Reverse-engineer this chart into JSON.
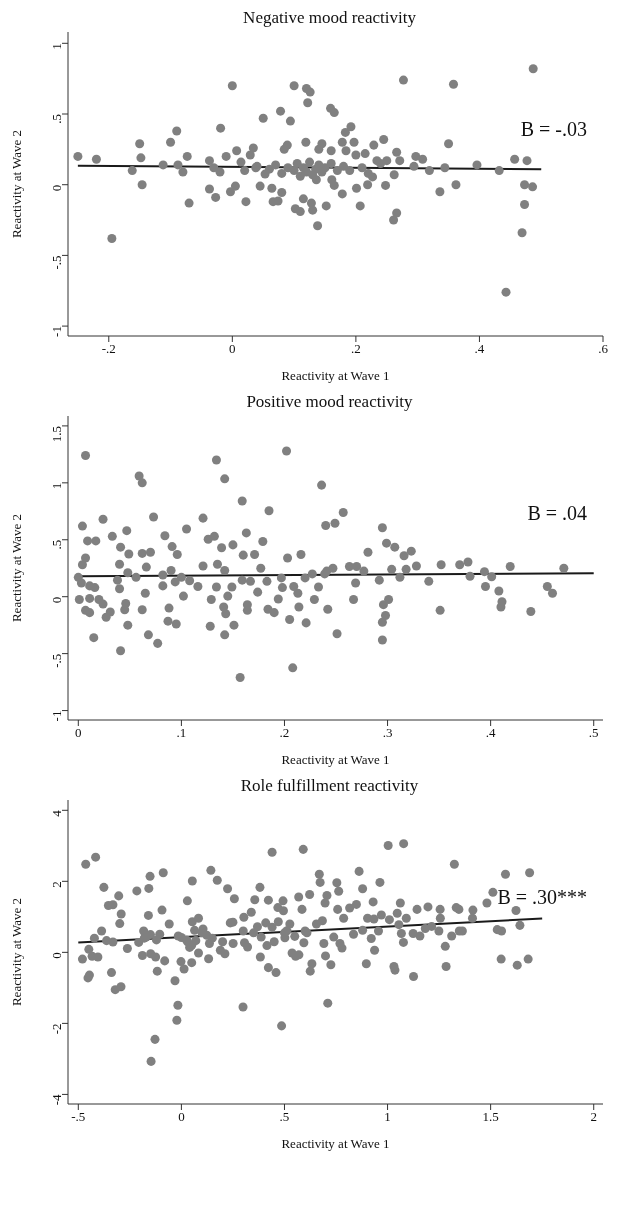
{
  "chart_data": [
    {
      "type": "scatter",
      "title": "Negative mood reactivity",
      "xlabel": "Reactivity at Wave 1",
      "ylabel": "Reactivity at Wave 2",
      "xlim": [
        -0.266,
        0.6
      ],
      "ylim": [
        -1.07,
        1.08
      ],
      "xticks": [
        {
          "value": -0.2,
          "label": "-.2"
        },
        0,
        {
          "value": 0.2,
          "label": ".2"
        },
        {
          "value": 0.4,
          "label": ".4"
        },
        {
          "value": 0.6,
          "label": ".6"
        }
      ],
      "yticks": [
        {
          "value": -1,
          "label": "-1"
        },
        {
          "value": -0.5,
          "label": "-.5"
        },
        0,
        {
          "value": 0.5,
          "label": ".5"
        },
        1
      ],
      "grid": false,
      "annotations": [
        "B = -.03"
      ],
      "series": [
        {
          "marker": "circle",
          "color": "#808080",
          "x": [
            -0.25,
            -0.22,
            -0.195,
            -0.162,
            -0.15,
            -0.148,
            -0.146,
            -0.112,
            -0.1,
            -0.09,
            -0.088,
            -0.08,
            -0.073,
            -0.07,
            -0.037,
            -0.037,
            -0.03,
            -0.027,
            -0.02,
            -0.019,
            -0.01,
            -0.003,
            0.0,
            0.005,
            0.007,
            0.014,
            0.022,
            0.029,
            0.034,
            0.038,
            0.045,
            0.05,
            0.053,
            0.064,
            0.066,
            0.074,
            0.078,
            0.08,
            0.084,
            0.089,
            0.094,
            0.1,
            0.102,
            0.11,
            0.12,
            0.122,
            0.126,
            0.119,
            0.115,
            0.128,
            0.13,
            0.136,
            0.138,
            0.14,
            0.145,
            0.152,
            0.159,
            0.16,
            0.161,
            0.165,
            0.165,
            0.178,
            0.178,
            0.183,
            0.184,
            0.192,
            0.197,
            0.201,
            0.2,
            0.207,
            0.215,
            0.219,
            0.227,
            0.229,
            0.234,
            0.245,
            0.248,
            0.261,
            0.266,
            0.262,
            0.266,
            0.271,
            0.277,
            0.294,
            0.297,
            0.308,
            0.319,
            0.336,
            0.344,
            0.35,
            0.358,
            0.362,
            0.396,
            0.432,
            0.443,
            0.457,
            0.469,
            0.473,
            0.473,
            0.477,
            0.486,
            0.487,
            0.02,
            0.04,
            0.06,
            0.07,
            0.08,
            0.09,
            0.1,
            0.105,
            0.11,
            0.115,
            0.12,
            0.125,
            0.13,
            0.135,
            0.14,
            0.145,
            0.15,
            0.16,
            0.17,
            0.18,
            0.19,
            0.21,
            0.22,
            0.24,
            0.25
          ],
          "values": [
            0.2,
            0.18,
            -0.38,
            0.1,
            0.29,
            0.19,
            0.0,
            0.14,
            0.3,
            0.38,
            0.14,
            0.09,
            0.2,
            -0.13,
            0.17,
            -0.03,
            0.12,
            -0.09,
            0.09,
            0.4,
            0.2,
            -0.05,
            0.7,
            -0.01,
            0.24,
            0.16,
            -0.12,
            0.21,
            0.26,
            0.12,
            -0.01,
            0.47,
            0.075,
            -0.025,
            -0.12,
            -0.115,
            0.52,
            -0.055,
            0.25,
            0.28,
            0.45,
            0.7,
            -0.17,
            -0.19,
            0.68,
            0.58,
            0.655,
            0.3,
            -0.1,
            -0.13,
            -0.18,
            0.035,
            -0.29,
            0.25,
            0.29,
            -0.15,
            0.54,
            0.24,
            0.035,
            0.51,
            -0.005,
            -0.065,
            0.3,
            0.37,
            0.24,
            0.41,
            0.3,
            -0.025,
            0.21,
            -0.15,
            0.22,
            0.0,
            0.055,
            0.28,
            0.17,
            0.32,
            -0.005,
            -0.25,
            -0.2,
            0.07,
            0.23,
            0.17,
            0.74,
            0.13,
            0.2,
            0.18,
            0.1,
            -0.05,
            0.12,
            0.29,
            0.71,
            0.0,
            0.14,
            0.1,
            -0.76,
            0.18,
            -0.34,
            -0.14,
            0.0,
            0.17,
            -0.015,
            0.82,
            0.1,
            0.13,
            0.11,
            0.14,
            0.08,
            0.12,
            0.1,
            0.15,
            0.06,
            0.12,
            0.09,
            0.16,
            0.07,
            0.11,
            0.14,
            0.09,
            0.12,
            0.15,
            0.1,
            0.13,
            0.1,
            0.12,
            0.08,
            0.15,
            0.17
          ]
        },
        {
          "type": "line",
          "color": "#1a1a1a",
          "x": [
            -0.25,
            0.5
          ],
          "values": [
            0.134,
            0.11
          ]
        }
      ]
    },
    {
      "type": "scatter",
      "title": "Positive mood reactivity",
      "xlabel": "Reactivity at Wave 1",
      "ylabel": "Reactivity at Wave 2",
      "xlim": [
        -0.01,
        0.509
      ],
      "ylim": [
        -1.083,
        1.587
      ],
      "xticks": [
        0,
        {
          "value": 0.1,
          "label": ".1"
        },
        {
          "value": 0.2,
          "label": ".2"
        },
        {
          "value": 0.3,
          "label": ".3"
        },
        {
          "value": 0.4,
          "label": ".4"
        },
        {
          "value": 0.5,
          "label": ".5"
        }
      ],
      "yticks": [
        {
          "value": -1,
          "label": "-1"
        },
        {
          "value": -0.5,
          "label": "-.5"
        },
        0,
        {
          "value": 0.5,
          "label": ".5"
        },
        1,
        1.5
      ],
      "grid": false,
      "annotations": [
        "B = .04"
      ],
      "series": [
        {
          "marker": "circle",
          "color": "#808080",
          "x": [
            0.0,
            0.001,
            0.003,
            0.004,
            0.004,
            0.007,
            0.007,
            0.007,
            0.009,
            0.011,
            0.011,
            0.011,
            0.015,
            0.016,
            0.017,
            0.02,
            0.024,
            0.024,
            0.027,
            0.031,
            0.033,
            0.038,
            0.04,
            0.04,
            0.041,
            0.041,
            0.045,
            0.046,
            0.047,
            0.048,
            0.049,
            0.048,
            0.056,
            0.059,
            0.062,
            0.062,
            0.062,
            0.065,
            0.066,
            0.068,
            0.073,
            0.077,
            0.07,
            0.082,
            0.082,
            0.084,
            0.087,
            0.088,
            0.09,
            0.091,
            0.095,
            0.096,
            0.094,
            0.102,
            0.105,
            0.1,
            0.108,
            0.116,
            0.121,
            0.121,
            0.126,
            0.128,
            0.129,
            0.132,
            0.134,
            0.134,
            0.135,
            0.139,
            0.142,
            0.142,
            0.141,
            0.143,
            0.145,
            0.142,
            0.149,
            0.15,
            0.151,
            0.157,
            0.159,
            0.159,
            0.16,
            0.163,
            0.164,
            0.164,
            0.167,
            0.171,
            0.174,
            0.177,
            0.179,
            0.183,
            0.184,
            0.185,
            0.19,
            0.194,
            0.197,
            0.198,
            0.202,
            0.203,
            0.205,
            0.208,
            0.209,
            0.213,
            0.216,
            0.214,
            0.22,
            0.221,
            0.227,
            0.229,
            0.233,
            0.236,
            0.239,
            0.24,
            0.241,
            0.242,
            0.247,
            0.249,
            0.251,
            0.257,
            0.263,
            0.267,
            0.269,
            0.27,
            0.277,
            0.281,
            0.292,
            0.295,
            0.295,
            0.295,
            0.296,
            0.298,
            0.299,
            0.301,
            0.304,
            0.307,
            0.312,
            0.316,
            0.318,
            0.323,
            0.328,
            0.34,
            0.351,
            0.352,
            0.37,
            0.378,
            0.38,
            0.394,
            0.395,
            0.401,
            0.408,
            0.411,
            0.41,
            0.419,
            0.439,
            0.455,
            0.46,
            0.471
          ],
          "values": [
            0.17,
            -0.025,
            0.12,
            0.28,
            0.62,
            0.34,
            1.24,
            -0.12,
            0.49,
            -0.14,
            -0.015,
            0.095,
            -0.36,
            0.08,
            0.49,
            -0.025,
            0.68,
            -0.065,
            -0.18,
            -0.135,
            0.53,
            0.145,
            0.285,
            0.07,
            -0.475,
            0.435,
            -0.115,
            -0.06,
            0.58,
            -0.25,
            0.375,
            0.21,
            0.17,
            1.06,
            1.0,
            0.38,
            -0.115,
            0.03,
            0.26,
            -0.335,
            0.7,
            -0.41,
            0.39,
            0.19,
            0.095,
            0.535,
            -0.215,
            -0.1,
            0.23,
            0.44,
            -0.24,
            0.37,
            0.13,
            0.005,
            0.595,
            0.17,
            0.14,
            0.09,
            0.69,
            0.27,
            0.505,
            -0.26,
            -0.025,
            0.53,
            0.085,
            1.2,
            0.285,
            0.43,
            -0.335,
            1.035,
            -0.09,
            -0.15,
            0.005,
            0.23,
            0.085,
            0.455,
            -0.25,
            -0.71,
            0.84,
            0.145,
            0.365,
            0.56,
            -0.12,
            -0.07,
            0.135,
            0.37,
            0.04,
            0.25,
            0.485,
            0.135,
            -0.11,
            0.755,
            -0.14,
            -0.02,
            0.165,
            0.08,
            1.28,
            0.34,
            -0.2,
            -0.625,
            0.09,
            0.03,
            0.37,
            -0.09,
            0.165,
            -0.23,
            0.2,
            -0.025,
            0.085,
            0.98,
            0.2,
            0.625,
            0.225,
            -0.11,
            0.25,
            0.645,
            -0.325,
            0.74,
            0.265,
            -0.025,
            0.12,
            0.265,
            0.225,
            0.39,
            0.145,
            -0.38,
            0.605,
            -0.225,
            -0.07,
            -0.165,
            0.47,
            -0.025,
            0.24,
            0.435,
            0.17,
            0.36,
            0.24,
            0.4,
            0.27,
            0.135,
            -0.12,
            0.28,
            0.28,
            0.305,
            0.18,
            0.22,
            0.09,
            0.175,
            0.05,
            -0.045,
            -0.09,
            0.265,
            -0.13,
            0.09,
            0.03,
            0.25
          ]
        },
        {
          "type": "line",
          "color": "#1a1a1a",
          "x": [
            0,
            0.5
          ],
          "values": [
            0.18,
            0.205
          ]
        }
      ]
    },
    {
      "type": "scatter",
      "title": "Role fulfillment reactivity",
      "xlabel": "Reactivity at Wave 1",
      "ylabel": "Reactivity at Wave 2",
      "xlim": [
        -0.55,
        2.045
      ],
      "ylim": [
        -4.27,
        4.29
      ],
      "xticks": [
        {
          "value": -0.5,
          "label": "-.5"
        },
        0,
        {
          "value": 0.5,
          "label": ".5"
        },
        1,
        1.5,
        2
      ],
      "yticks": [
        -4,
        -2,
        0,
        2,
        4
      ],
      "grid": false,
      "annotations": [
        "B = .30***"
      ],
      "series": [
        {
          "marker": "circle",
          "color": "#808080",
          "x": [
            -0.48,
            -0.464,
            -0.453,
            -0.449,
            -0.446,
            -0.433,
            -0.422,
            -0.416,
            -0.405,
            -0.387,
            -0.376,
            -0.363,
            -0.354,
            -0.339,
            -0.332,
            -0.332,
            -0.321,
            -0.304,
            -0.299,
            -0.293,
            -0.292,
            -0.262,
            -0.216,
            -0.207,
            -0.189,
            -0.183,
            -0.171,
            -0.16,
            -0.158,
            -0.152,
            -0.149,
            -0.147,
            -0.128,
            -0.125,
            -0.121,
            -0.117,
            -0.105,
            -0.094,
            -0.088,
            -0.081,
            -0.059,
            -0.031,
            -0.022,
            -0.017,
            -0.015,
            -0.002,
            0.013,
            0.024,
            0.029,
            0.04,
            0.05,
            0.053,
            0.053,
            0.064,
            0.083,
            0.083,
            0.105,
            0.123,
            0.132,
            0.136,
            0.143,
            0.174,
            0.189,
            0.211,
            0.224,
            0.237,
            0.251,
            0.257,
            0.299,
            0.303,
            0.306,
            0.321,
            0.339,
            0.356,
            0.369,
            0.381,
            0.387,
            0.383,
            0.409,
            0.415,
            0.422,
            0.422,
            0.44,
            0.44,
            0.459,
            0.468,
            0.47,
            0.486,
            0.493,
            0.495,
            0.502,
            0.512,
            0.526,
            0.537,
            0.554,
            0.57,
            0.569,
            0.591,
            0.585,
            0.594,
            0.609,
            0.622,
            0.625,
            0.633,
            0.655,
            0.669,
            0.673,
            0.684,
            0.691,
            0.697,
            0.699,
            0.706,
            0.71,
            0.725,
            0.739,
            0.754,
            0.758,
            0.763,
            0.769,
            0.779,
            0.787,
            0.816,
            0.835,
            0.849,
            0.862,
            0.879,
            0.879,
            0.897,
            0.903,
            0.921,
            0.93,
            0.934,
            0.937,
            0.956,
            0.963,
            0.97,
            1.003,
            1.009,
            1.031,
            1.036,
            1.047,
            1.055,
            1.062,
            1.067,
            1.077,
            1.078,
            1.091,
            1.126,
            1.124,
            1.143,
            1.157,
            1.183,
            1.196,
            1.214,
            1.249,
            1.255,
            1.256,
            1.28,
            1.284,
            1.311,
            1.324,
            1.333,
            1.346,
            1.348,
            1.363,
            1.412,
            1.414,
            1.482,
            1.511,
            1.532,
            1.553,
            1.551,
            1.572,
            1.623,
            1.629,
            1.642,
            1.682,
            1.689,
            0.0,
            0.03,
            0.05,
            0.07,
            0.1,
            0.15,
            0.2,
            0.25,
            0.3,
            0.35,
            0.45,
            0.5,
            0.55,
            0.6,
            -0.18,
            -0.15
          ],
          "values": [
            -0.19,
            2.48,
            -0.72,
            0.085,
            -0.64,
            -0.11,
            0.4,
            2.68,
            -0.13,
            0.6,
            1.83,
            0.33,
            1.32,
            -0.57,
            1.34,
            0.29,
            -1.05,
            1.59,
            0.81,
            -0.97,
            1.08,
            0.11,
            1.73,
            0.28,
            -0.09,
            0.6,
            0.43,
            1.04,
            1.8,
            2.14,
            -0.04,
            -3.07,
            -2.45,
            -0.13,
            0.35,
            -0.53,
            0.51,
            1.19,
            2.24,
            -0.24,
            0.8,
            -0.8,
            -1.91,
            -1.49,
            0.46,
            -0.26,
            -0.47,
            0.35,
            1.45,
            0.14,
            -0.29,
            2.01,
            0.86,
            0.62,
            0.96,
            -0.02,
            0.66,
            0.48,
            -0.18,
            0.25,
            2.31,
            2.03,
            0.06,
            -0.04,
            1.79,
            0.83,
            0.25,
            1.51,
            -1.54,
            0.99,
            0.27,
            0.15,
            1.13,
            1.48,
            0.72,
            1.83,
            0.43,
            -0.13,
            0.83,
            0.19,
            -0.43,
            1.47,
            2.82,
            0.71,
            -0.57,
            1.26,
            0.86,
            -2.07,
            1.45,
            1.17,
            0.41,
            0.61,
            0.8,
            -0.02,
            -0.11,
            -0.07,
            1.56,
            2.9,
            1.21,
            0.27,
            0.55,
            1.63,
            -0.53,
            -0.32,
            0.8,
            2.2,
            1.97,
            0.89,
            0.25,
            1.39,
            -0.1,
            1.6,
            -1.43,
            -0.35,
            0.43,
            1.96,
            1.21,
            1.72,
            0.25,
            0.12,
            0.96,
            1.25,
            0.51,
            1.35,
            2.28,
            1.79,
            0.62,
            -0.32,
            0.96,
            0.39,
            1.42,
            0.94,
            0.06,
            0.6,
            1.97,
            1.05,
            3.01,
            0.92,
            -0.4,
            -0.5,
            1.1,
            0.78,
            1.39,
            0.53,
            0.28,
            3.06,
            0.96,
            -0.68,
            0.53,
            1.21,
            0.46,
            0.67,
            1.28,
            0.73,
            0.6,
            1.21,
            0.96,
            0.17,
            -0.4,
            0.46,
            2.48,
            1.26,
            1.21,
            0.6,
            0.6,
            0.96,
            1.19,
            1.39,
            1.69,
            0.64,
            0.6,
            -0.19,
            2.2,
            1.18,
            -0.36,
            0.76,
            -0.19,
            2.24,
            0.42,
            0.3,
            0.2,
            0.33,
            0.55,
            0.4,
            0.3,
            0.85,
            0.6,
            0.55,
            0.3,
            0.55,
            0.45,
            0.6,
            0.4,
            0.5
          ]
        },
        {
          "type": "line",
          "color": "#1a1a1a",
          "x": [
            -0.5,
            1.75
          ],
          "values": [
            0.28,
            0.95
          ]
        }
      ]
    }
  ]
}
